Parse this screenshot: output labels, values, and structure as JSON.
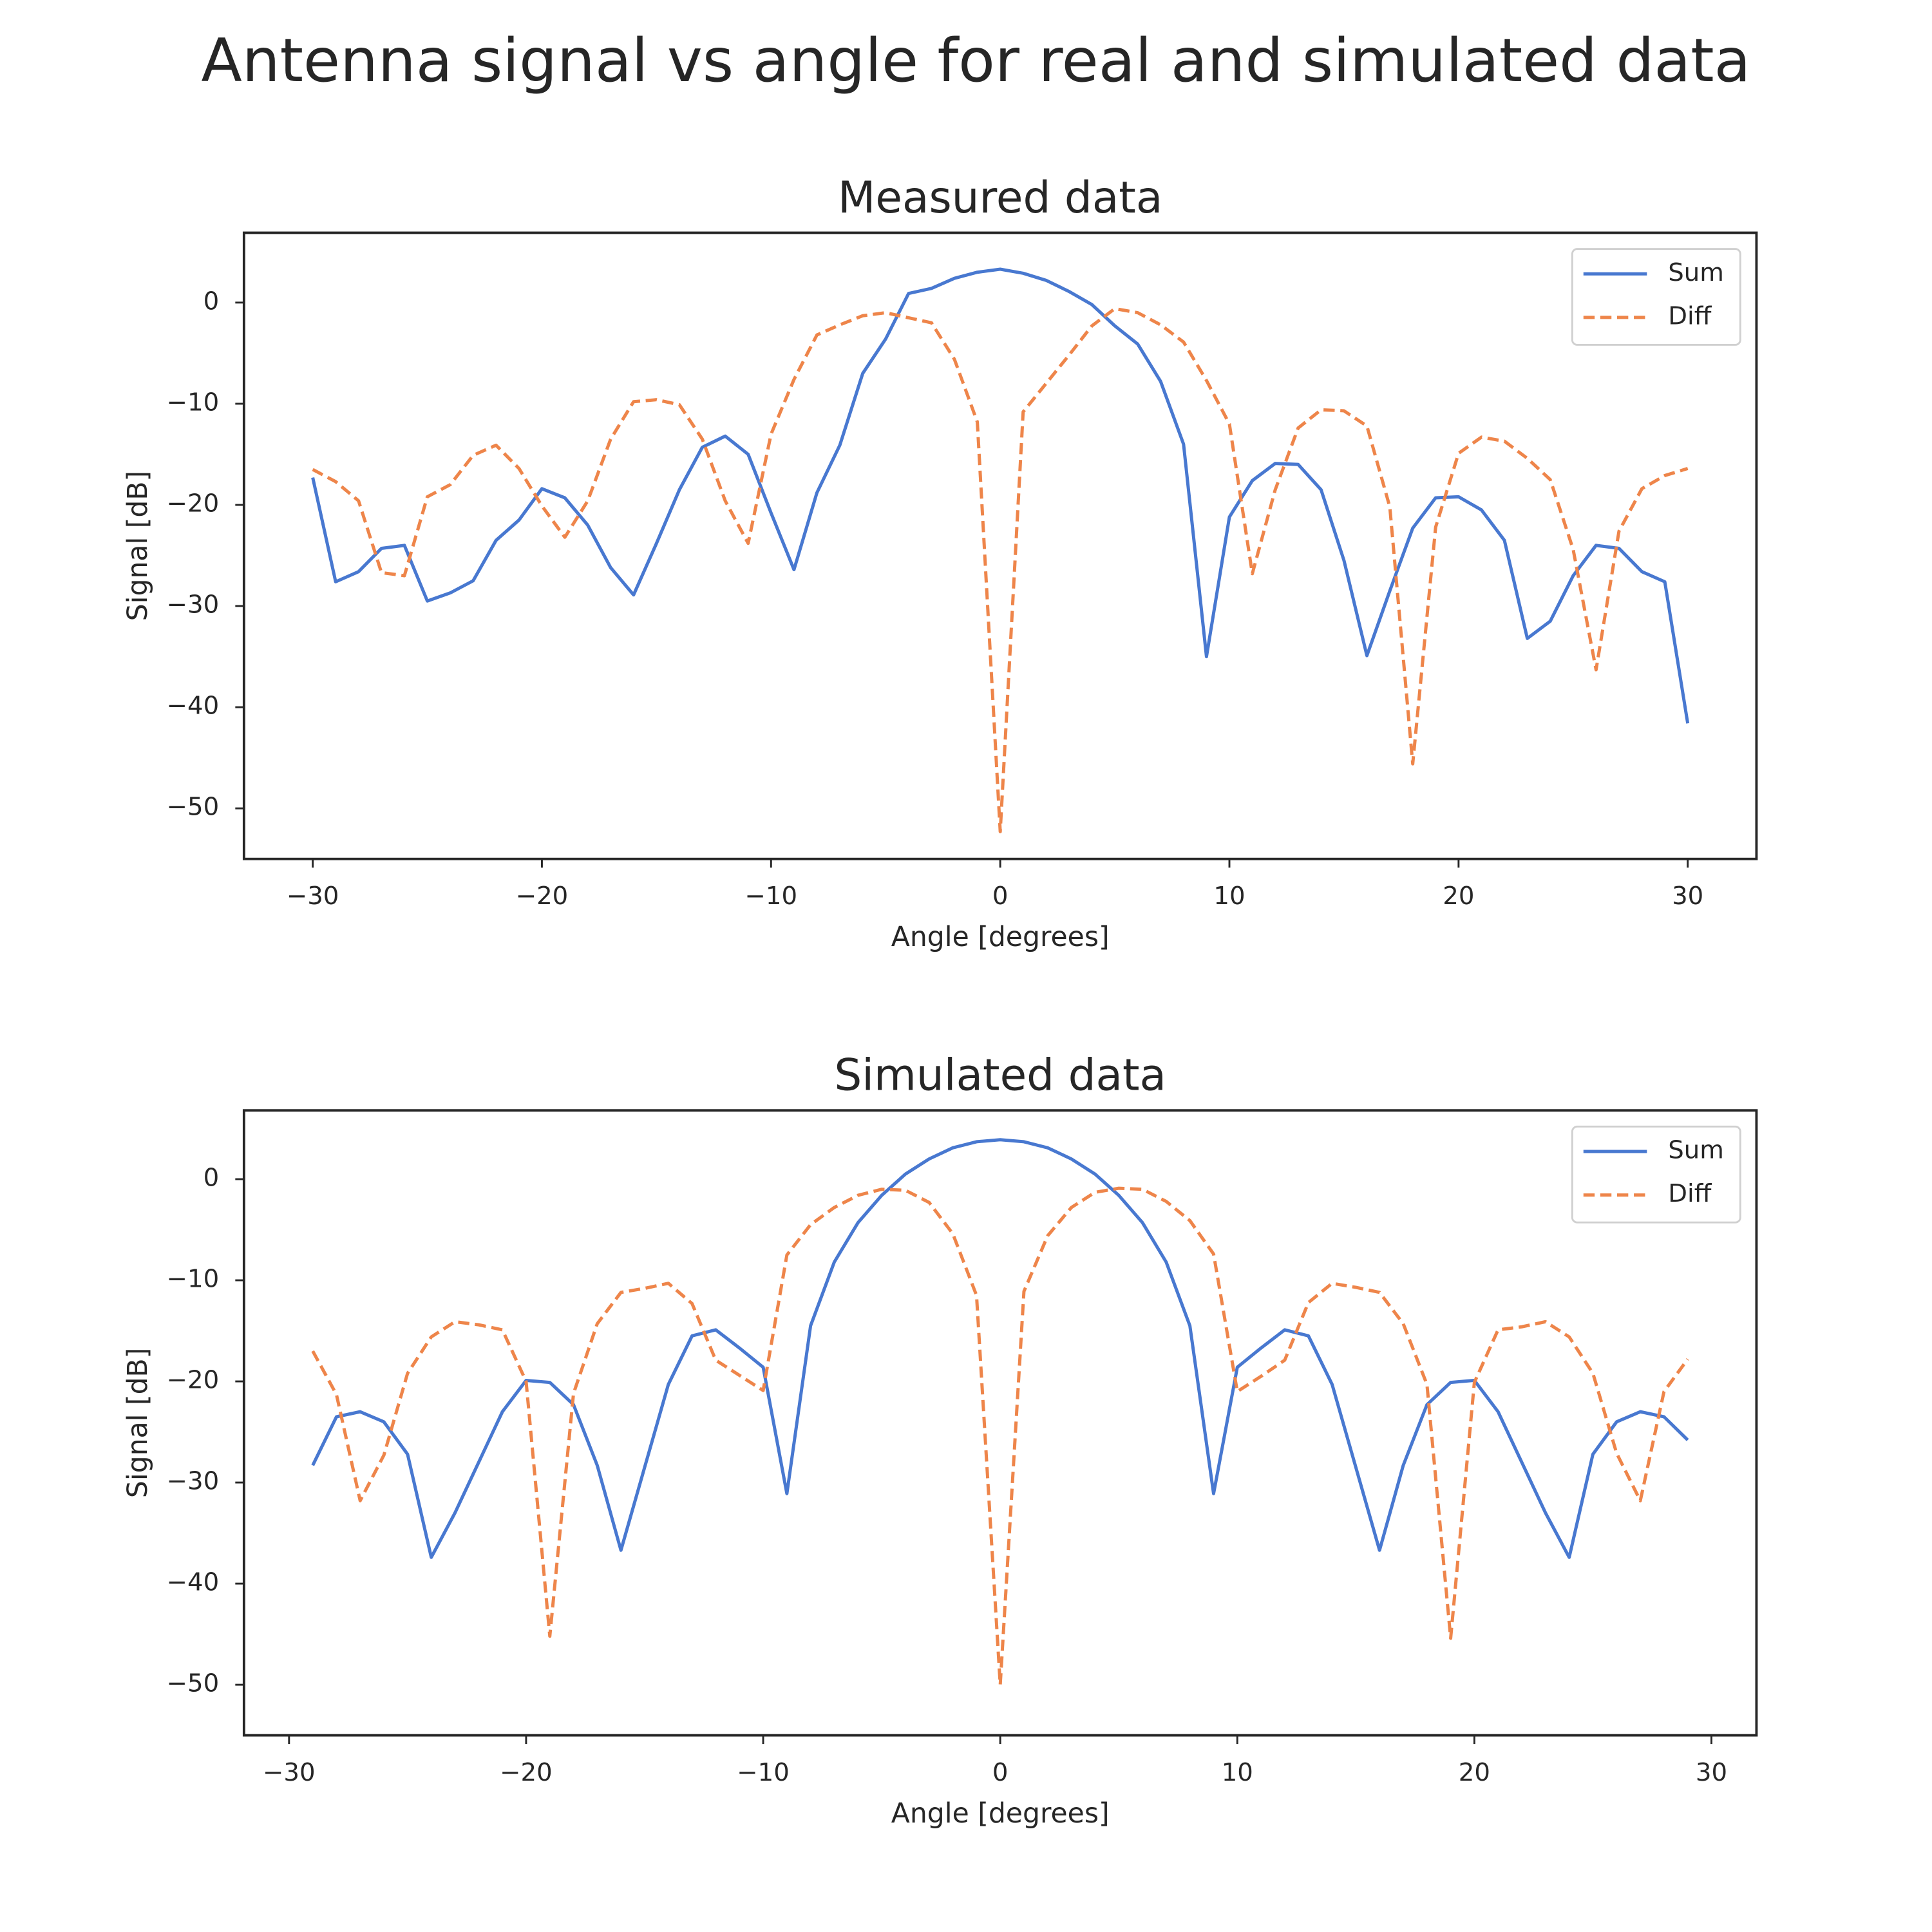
{
  "title": "Antenna signal vs angle for real and simulated data",
  "chart_data": [
    {
      "type": "line",
      "title": "Measured data",
      "xlabel": "Angle [degrees]",
      "ylabel": "Signal [dB]",
      "x": [
        -30,
        -29,
        -28,
        -27,
        -26,
        -25,
        -24,
        -23,
        -22,
        -21,
        -20,
        -19,
        -18,
        -17,
        -16,
        -15,
        -14,
        -13,
        -12,
        -11,
        -10,
        -9,
        -8,
        -7,
        -6,
        -5,
        -4,
        -3,
        -2,
        -1,
        0,
        1,
        2,
        3,
        4,
        5,
        6,
        7,
        8,
        9,
        10,
        11,
        12,
        13,
        14,
        15,
        16,
        17,
        18,
        19,
        20,
        21,
        22,
        23,
        24,
        25,
        26,
        27,
        28,
        29,
        30
      ],
      "series": [
        {
          "name": "Sum",
          "color": "#4878d0",
          "linestyle": "solid",
          "values": [
            -17.3,
            -27.6,
            -26.6,
            -24.3,
            -24.0,
            -29.5,
            -28.7,
            -27.5,
            -23.5,
            -21.5,
            -18.4,
            -19.3,
            -22.0,
            -26.2,
            -28.9,
            -23.8,
            -18.5,
            -14.3,
            -13.2,
            -15.0,
            -20.8,
            -26.4,
            -18.8,
            -14.1,
            -7.0,
            -3.6,
            0.9,
            1.4,
            2.4,
            3.0,
            3.3,
            2.9,
            2.2,
            1.1,
            -0.2,
            -2.3,
            -4.1,
            -7.8,
            -14.0,
            -35.0,
            -21.2,
            -17.6,
            -15.9,
            -16.0,
            -18.5,
            -25.5,
            -34.9,
            -28.5,
            -22.3,
            -19.3,
            -19.2,
            -20.5,
            -23.5,
            -33.2,
            -31.5,
            -27.0,
            -24.0,
            -24.3,
            -26.6,
            -27.6,
            -41.6
          ]
        },
        {
          "name": "Diff",
          "color": "#ee854a",
          "linestyle": "dashed",
          "values": [
            -16.5,
            -17.7,
            -19.6,
            -26.7,
            -27.0,
            -19.2,
            -18.0,
            -15.1,
            -14.1,
            -16.4,
            -20.1,
            -23.2,
            -19.6,
            -13.5,
            -9.8,
            -9.6,
            -10.1,
            -13.5,
            -19.6,
            -23.8,
            -13.0,
            -7.6,
            -3.2,
            -2.2,
            -1.3,
            -1.0,
            -1.5,
            -2.0,
            -5.6,
            -11.8,
            -52.3,
            -10.8,
            -8.0,
            -5.2,
            -2.3,
            -0.6,
            -1.0,
            -2.2,
            -3.9,
            -7.7,
            -12.0,
            -26.8,
            -18.5,
            -12.4,
            -10.6,
            -10.7,
            -12.2,
            -20.2,
            -45.6,
            -22.2,
            -14.9,
            -13.3,
            -13.7,
            -15.4,
            -17.5,
            -24.4,
            -36.3,
            -22.6,
            -18.4,
            -17.1,
            -16.4
          ]
        }
      ],
      "xlim": [
        -33,
        33
      ],
      "ylim": [
        -55,
        6.9
      ],
      "xticks": [
        {
          "value": -30,
          "label": "−30"
        },
        {
          "value": -20,
          "label": "−20"
        },
        {
          "value": -10,
          "label": "−10"
        },
        0,
        10,
        20,
        30
      ],
      "yticks": [
        0,
        {
          "value": -10,
          "label": "−10"
        },
        {
          "value": -20,
          "label": "−20"
        },
        {
          "value": -30,
          "label": "−30"
        },
        {
          "value": -40,
          "label": "−40"
        },
        {
          "value": -50,
          "label": "−50"
        }
      ],
      "legend": "upper right"
    },
    {
      "type": "line",
      "title": "Simulated data",
      "xlabel": "Angle [degrees]",
      "ylabel": "Signal [dB]",
      "x": [
        -29,
        -28,
        -27,
        -26,
        -25,
        -24,
        -23,
        -22,
        -21,
        -20,
        -19,
        -18,
        -17,
        -16,
        -15,
        -14,
        -13,
        -12,
        -11,
        -10,
        -9,
        -8,
        -7,
        -6,
        -5,
        -4,
        -3,
        -2,
        -1,
        0,
        1,
        2,
        3,
        4,
        5,
        6,
        7,
        8,
        9,
        10,
        11,
        12,
        13,
        14,
        15,
        16,
        17,
        18,
        19,
        20,
        21,
        22,
        23,
        24,
        25,
        26,
        27,
        28,
        29
      ],
      "series": [
        {
          "name": "Sum",
          "color": "#4878d0",
          "linestyle": "solid",
          "values": [
            -28.3,
            -23.5,
            -23.0,
            -24.0,
            -27.2,
            -37.4,
            -33.0,
            -28.0,
            -23.0,
            -19.9,
            -20.1,
            -22.3,
            -28.3,
            -36.7,
            -28.5,
            -20.3,
            -15.5,
            -14.9,
            -16.7,
            -18.6,
            -31.1,
            -14.5,
            -8.2,
            -4.3,
            -1.6,
            0.5,
            2.0,
            3.1,
            3.7,
            3.9,
            3.7,
            3.1,
            2.0,
            0.5,
            -1.6,
            -4.3,
            -8.2,
            -14.5,
            -31.1,
            -18.6,
            -16.7,
            -14.9,
            -15.5,
            -20.3,
            -28.5,
            -36.7,
            -28.3,
            -22.3,
            -20.1,
            -19.9,
            -23.0,
            -28.0,
            -33.0,
            -37.4,
            -27.2,
            -24.0,
            -23.0,
            -23.5,
            -25.8
          ]
        },
        {
          "name": "Diff",
          "color": "#ee854a",
          "linestyle": "dashed",
          "values": [
            -17.0,
            -21.3,
            -31.8,
            -27.3,
            -19.2,
            -15.6,
            -14.1,
            -14.4,
            -14.9,
            -20.0,
            -45.2,
            -21.2,
            -14.3,
            -11.2,
            -10.8,
            -10.3,
            -12.3,
            -17.9,
            -19.4,
            -20.9,
            -7.5,
            -4.5,
            -2.8,
            -1.6,
            -1.0,
            -1.1,
            -2.3,
            -5.4,
            -11.5,
            -50.0,
            -11.1,
            -5.6,
            -2.8,
            -1.3,
            -0.9,
            -1.0,
            -2.2,
            -4.1,
            -7.4,
            -21.0,
            -19.5,
            -17.9,
            -12.2,
            -10.3,
            -10.7,
            -11.2,
            -14.3,
            -20.3,
            -45.4,
            -20.1,
            -14.9,
            -14.6,
            -14.1,
            -15.6,
            -19.2,
            -27.1,
            -31.8,
            -21.0,
            -17.8
          ]
        }
      ],
      "xlim": [
        -31.9,
        31.9
      ],
      "ylim": [
        -55,
        6.8
      ],
      "xticks": [
        {
          "value": -30,
          "label": "−30"
        },
        {
          "value": -20,
          "label": "−20"
        },
        {
          "value": -10,
          "label": "−10"
        },
        0,
        10,
        20,
        30
      ],
      "yticks": [
        0,
        {
          "value": -10,
          "label": "−10"
        },
        {
          "value": -20,
          "label": "−20"
        },
        {
          "value": -30,
          "label": "−30"
        },
        {
          "value": -40,
          "label": "−40"
        },
        {
          "value": -50,
          "label": "−50"
        }
      ],
      "legend": "upper right"
    }
  ]
}
